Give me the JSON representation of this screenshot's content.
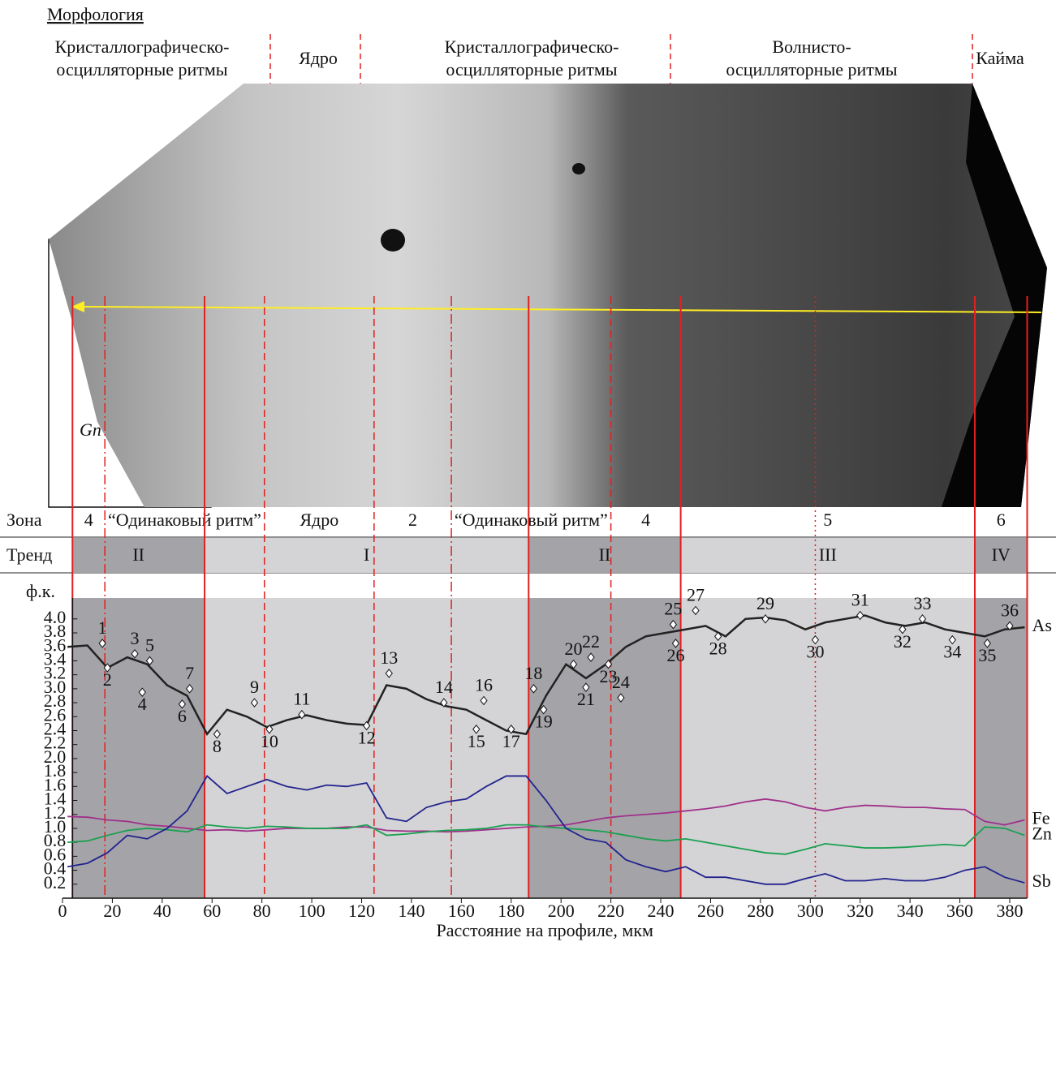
{
  "morphology": {
    "title": "Морфология",
    "labels": [
      {
        "lines": [
          "Кристаллографическо-",
          "осцилляторные ритмы"
        ]
      },
      {
        "lines": [
          "Ядро"
        ]
      },
      {
        "lines": [
          "Кристаллографическо-",
          "осцилляторные ритмы"
        ]
      },
      {
        "lines": [
          "Волнисто-",
          "осцилляторные ритмы"
        ]
      },
      {
        "lines": [
          "Кайма"
        ]
      }
    ],
    "mineral": "Gn"
  },
  "chart_data": {
    "type": "line",
    "x_label": "Расстояние на профиле, мкм",
    "y_label": "ф.к.",
    "x": [
      2,
      10,
      18,
      26,
      34,
      42,
      50,
      58,
      66,
      74,
      82,
      90,
      98,
      106,
      114,
      122,
      130,
      138,
      146,
      154,
      162,
      170,
      178,
      186,
      194,
      202,
      210,
      218,
      226,
      234,
      242,
      250,
      258,
      266,
      274,
      282,
      290,
      298,
      306,
      314,
      322,
      330,
      338,
      346,
      354,
      362,
      370,
      378,
      386
    ],
    "xlim": [
      0,
      387
    ],
    "xticks": [
      0,
      20,
      40,
      60,
      80,
      100,
      120,
      140,
      160,
      180,
      200,
      220,
      240,
      260,
      280,
      300,
      320,
      340,
      360,
      380
    ],
    "ylim": [
      0,
      4.3
    ],
    "yticks": [
      0.2,
      0.4,
      0.6,
      0.8,
      {
        "value": 1,
        "label": "1.0"
      },
      1.2,
      1.4,
      1.6,
      1.8,
      {
        "value": 2,
        "label": "2.0"
      },
      2.2,
      2.4,
      2.6,
      2.8,
      {
        "value": 3,
        "label": "3.0"
      },
      3.2,
      3.4,
      3.6,
      3.8,
      {
        "value": 4,
        "label": "4.0"
      }
    ],
    "series": [
      {
        "name": "As",
        "color": "#222222",
        "values": [
          3.6,
          3.62,
          3.3,
          3.45,
          3.35,
          3.05,
          2.9,
          2.35,
          2.7,
          2.6,
          2.45,
          2.55,
          2.62,
          2.55,
          2.5,
          2.48,
          3.05,
          3.0,
          2.85,
          2.75,
          2.7,
          2.55,
          2.4,
          2.35,
          2.9,
          3.35,
          3.15,
          3.35,
          3.6,
          3.75,
          3.8,
          3.85,
          3.9,
          3.75,
          4.0,
          4.02,
          3.98,
          3.85,
          3.95,
          4.0,
          4.05,
          3.95,
          3.9,
          3.95,
          3.85,
          3.8,
          3.75,
          3.85,
          3.88
        ]
      },
      {
        "name": "Fe",
        "color": "#a0308a",
        "values": [
          1.17,
          1.16,
          1.12,
          1.1,
          1.05,
          1.03,
          1.0,
          0.97,
          0.98,
          0.96,
          0.98,
          1.0,
          1.0,
          1.0,
          1.02,
          1.02,
          0.97,
          0.96,
          0.96,
          0.95,
          0.96,
          0.98,
          1.0,
          1.02,
          1.03,
          1.05,
          1.1,
          1.15,
          1.18,
          1.2,
          1.22,
          1.25,
          1.28,
          1.32,
          1.38,
          1.42,
          1.38,
          1.3,
          1.25,
          1.3,
          1.33,
          1.32,
          1.3,
          1.3,
          1.28,
          1.27,
          1.1,
          1.05,
          1.12
        ]
      },
      {
        "name": "Zn",
        "color": "#1aa050",
        "values": [
          0.8,
          0.82,
          0.9,
          0.97,
          1.0,
          0.98,
          0.95,
          1.05,
          1.02,
          1.0,
          1.03,
          1.02,
          1.0,
          1.0,
          1.0,
          1.05,
          0.9,
          0.92,
          0.95,
          0.97,
          0.98,
          1.0,
          1.05,
          1.05,
          1.02,
          1.0,
          0.98,
          0.95,
          0.9,
          0.85,
          0.82,
          0.85,
          0.8,
          0.75,
          0.7,
          0.65,
          0.63,
          0.7,
          0.78,
          0.75,
          0.72,
          0.72,
          0.73,
          0.75,
          0.77,
          0.75,
          1.02,
          1.0,
          0.9
        ]
      },
      {
        "name": "Sb",
        "color": "#23238f",
        "values": [
          0.45,
          0.5,
          0.65,
          0.9,
          0.85,
          1.0,
          1.25,
          1.75,
          1.5,
          1.6,
          1.7,
          1.6,
          1.55,
          1.62,
          1.6,
          1.65,
          1.15,
          1.1,
          1.3,
          1.38,
          1.42,
          1.6,
          1.75,
          1.75,
          1.4,
          1.0,
          0.85,
          0.8,
          0.55,
          0.45,
          0.38,
          0.45,
          0.3,
          0.3,
          0.25,
          0.2,
          0.2,
          0.28,
          0.35,
          0.25,
          0.25,
          0.28,
          0.25,
          0.25,
          0.3,
          0.4,
          0.45,
          0.3,
          0.22
        ]
      }
    ],
    "point_labels": [
      {
        "label": "1",
        "x": 16,
        "y": 3.65
      },
      {
        "label": "2",
        "x": 18,
        "y": 3.3
      },
      {
        "label": "3",
        "x": 29,
        "y": 3.5
      },
      {
        "label": "4",
        "x": 32,
        "y": 2.95
      },
      {
        "label": "5",
        "x": 35,
        "y": 3.4
      },
      {
        "label": "6",
        "x": 48,
        "y": 2.78
      },
      {
        "label": "7",
        "x": 51,
        "y": 3.0
      },
      {
        "label": "8",
        "x": 62,
        "y": 2.35
      },
      {
        "label": "9",
        "x": 77,
        "y": 2.8
      },
      {
        "label": "10",
        "x": 83,
        "y": 2.42
      },
      {
        "label": "11",
        "x": 96,
        "y": 2.63
      },
      {
        "label": "12",
        "x": 122,
        "y": 2.47
      },
      {
        "label": "13",
        "x": 131,
        "y": 3.22
      },
      {
        "label": "14",
        "x": 153,
        "y": 2.8
      },
      {
        "label": "15",
        "x": 166,
        "y": 2.42
      },
      {
        "label": "16",
        "x": 169,
        "y": 2.83
      },
      {
        "label": "17",
        "x": 180,
        "y": 2.42
      },
      {
        "label": "18",
        "x": 189,
        "y": 3.0
      },
      {
        "label": "19",
        "x": 193,
        "y": 2.7
      },
      {
        "label": "20",
        "x": 205,
        "y": 3.35
      },
      {
        "label": "21",
        "x": 210,
        "y": 3.02
      },
      {
        "label": "22",
        "x": 212,
        "y": 3.45
      },
      {
        "label": "23",
        "x": 219,
        "y": 3.35
      },
      {
        "label": "24",
        "x": 224,
        "y": 2.87
      },
      {
        "label": "25",
        "x": 245,
        "y": 3.92
      },
      {
        "label": "26",
        "x": 246,
        "y": 3.65
      },
      {
        "label": "27",
        "x": 254,
        "y": 4.12
      },
      {
        "label": "28",
        "x": 263,
        "y": 3.75
      },
      {
        "label": "29",
        "x": 282,
        "y": 4.0
      },
      {
        "label": "30",
        "x": 302,
        "y": 3.7
      },
      {
        "label": "31",
        "x": 320,
        "y": 4.05
      },
      {
        "label": "32",
        "x": 337,
        "y": 3.85
      },
      {
        "label": "33",
        "x": 345,
        "y": 4.0
      },
      {
        "label": "34",
        "x": 357,
        "y": 3.7
      },
      {
        "label": "35",
        "x": 371,
        "y": 3.65
      },
      {
        "label": "36",
        "x": 380,
        "y": 3.9
      }
    ],
    "zone_title": "Зона",
    "zones": [
      {
        "label": "4",
        "from": 4,
        "to": 17
      },
      {
        "label": "“Одинаковый ритм”",
        "from": 17,
        "to": 81
      },
      {
        "label": "Ядро",
        "from": 81,
        "to": 125
      },
      {
        "label": "2",
        "from": 125,
        "to": 156
      },
      {
        "label": "“Одинаковый ритм”",
        "from": 156,
        "to": 220
      },
      {
        "label": "4",
        "from": 220,
        "to": 248
      },
      {
        "label": "5",
        "from": 248,
        "to": 366
      },
      {
        "label": "6",
        "from": 366,
        "to": 387
      }
    ],
    "trend_title": "Тренд",
    "trends": [
      {
        "label": "II",
        "from": 4,
        "to": 57,
        "color": "#a4a4a8"
      },
      {
        "label": "I",
        "from": 57,
        "to": 187,
        "color": "#d4d4d6"
      },
      {
        "label": "II",
        "from": 187,
        "to": 248,
        "color": "#a4a4a8"
      },
      {
        "label": "III",
        "from": 248,
        "to": 366,
        "color": "#d4d4d6"
      },
      {
        "label": "IV",
        "from": 366,
        "to": 387,
        "color": "#a4a4a8"
      }
    ],
    "boundaries": [
      {
        "x": 4,
        "style": "solid"
      },
      {
        "x": 17,
        "style": "dashdot"
      },
      {
        "x": 57,
        "style": "solid"
      },
      {
        "x": 81,
        "style": "dashed"
      },
      {
        "x": 125,
        "style": "dashed"
      },
      {
        "x": 156,
        "style": "dashdot"
      },
      {
        "x": 187,
        "style": "solid"
      },
      {
        "x": 220,
        "style": "dashed"
      },
      {
        "x": 248,
        "style": "solid"
      },
      {
        "x": 302,
        "style": "dotted"
      },
      {
        "x": 366,
        "style": "solid"
      },
      {
        "x": 387,
        "style": "solid"
      }
    ]
  }
}
